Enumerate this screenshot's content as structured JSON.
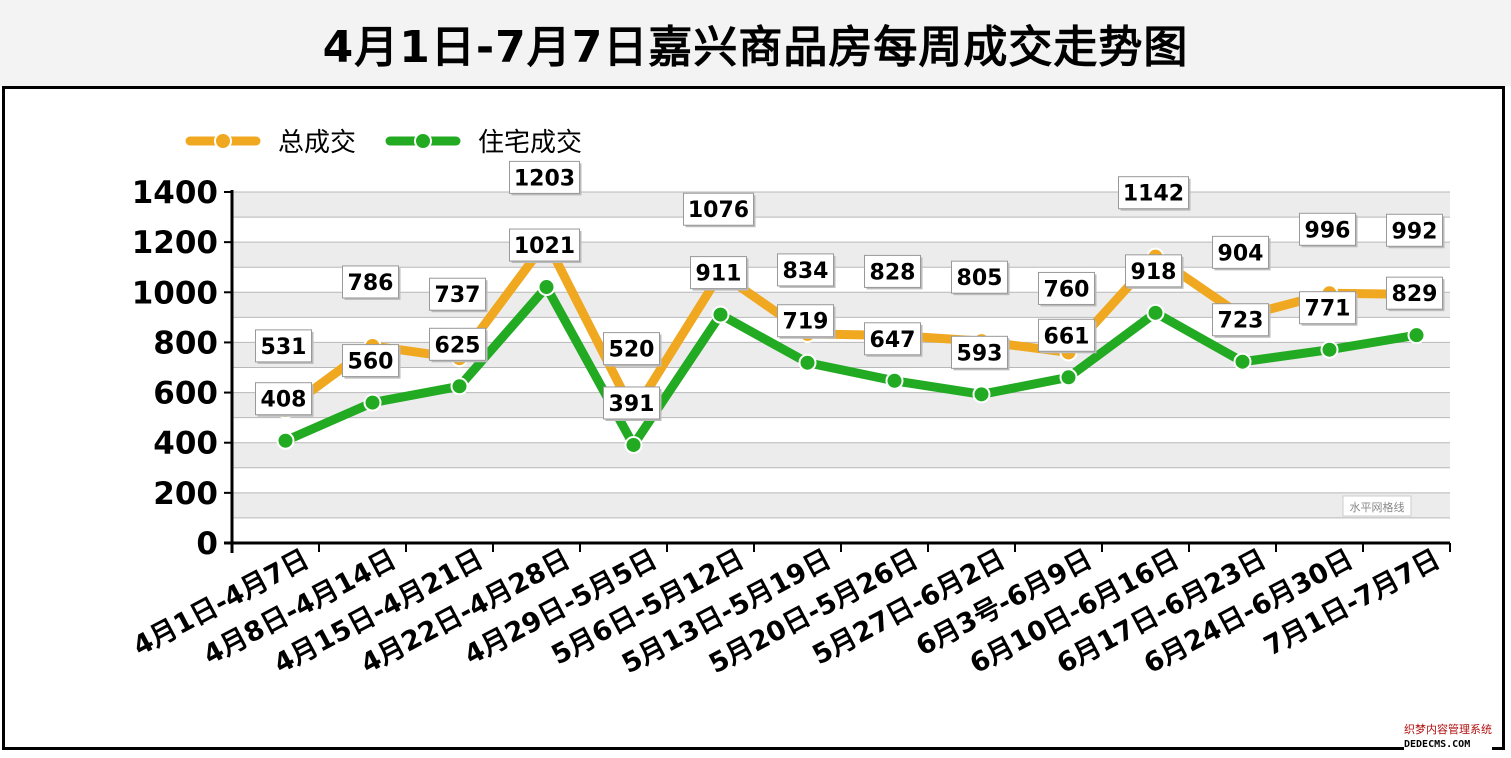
{
  "title": "4月1日-7月7日嘉兴商品房每周成交走势图",
  "chart_data": {
    "type": "line",
    "categories": [
      "4月1日-4月7日",
      "4月8日-4月14日",
      "4月15日-4月21日",
      "4月22日-4月28日",
      "4月29日-5月5日",
      "5月6日-5月12日",
      "5月13日-5月19日",
      "5月20日-5月26日",
      "5月27日-6月2日",
      "6月3号-6月9日",
      "6月10日-6月16日",
      "6月17日-6月23日",
      "6月24日-6月30日",
      "7月1日-7月7日"
    ],
    "series": [
      {
        "name": "总成交",
        "color": "#f0a820",
        "values": [
          531,
          786,
          737,
          1203,
          520,
          1076,
          834,
          828,
          805,
          760,
          1142,
          904,
          996,
          992
        ]
      },
      {
        "name": "住宅成交",
        "color": "#22aa22",
        "values": [
          408,
          560,
          625,
          1021,
          391,
          911,
          719,
          647,
          593,
          661,
          918,
          723,
          771,
          829
        ]
      }
    ],
    "yticks": [
      0,
      200,
      400,
      600,
      800,
      1000,
      1200,
      1400
    ],
    "ylim": [
      0,
      1400
    ],
    "grid": true,
    "legend": "top-left",
    "grid_note": "水平网格线"
  },
  "footer_watermark": {
    "line1": "织梦内容管理系统",
    "line2": "DEDECMS.COM"
  }
}
